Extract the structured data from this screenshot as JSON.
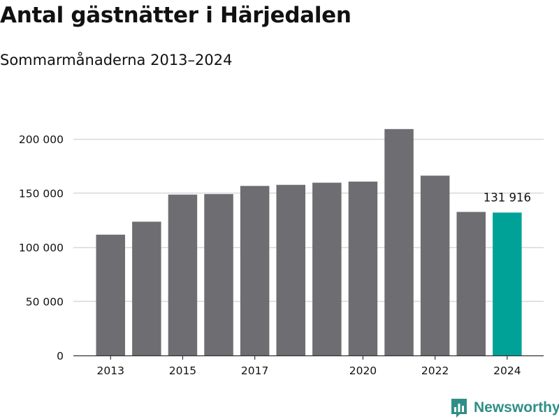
{
  "header": {
    "title": "Antal gästnätter i Härjedalen",
    "subtitle": "Sommarmånaderna 2013–2024"
  },
  "brand": {
    "name": "Newsworthy",
    "icon": "newsworthy-logo-icon"
  },
  "colors": {
    "bar": "#6e6d72",
    "highlight": "#00a298",
    "grid": "#d8d8d8",
    "axis": "#333333",
    "text": "#111111",
    "brand": "#2f8f86"
  },
  "chart_data": {
    "type": "bar",
    "title": "Antal gästnätter i Härjedalen",
    "subtitle": "Sommarmånaderna 2013–2024",
    "xlabel": "",
    "ylabel": "",
    "categories": [
      "2013",
      "2014",
      "2015",
      "2016",
      "2017",
      "2018",
      "2019",
      "2020",
      "2021",
      "2022",
      "2023",
      "2024"
    ],
    "values": [
      111500,
      123500,
      148500,
      149000,
      156500,
      157500,
      159500,
      160500,
      209000,
      166000,
      132500,
      131916
    ],
    "x_tick_labels": [
      "2013",
      "2015",
      "2017",
      "2020",
      "2022",
      "2024"
    ],
    "y_ticks": [
      0,
      50000,
      100000,
      150000,
      200000
    ],
    "y_tick_labels": [
      "0",
      "50 000",
      "100 000",
      "150 000",
      "200 000"
    ],
    "ylim": [
      0,
      225000
    ],
    "grid": "horizontal",
    "highlight_category": "2024",
    "annotations": [
      {
        "category": "2024",
        "text": "131 916"
      }
    ]
  }
}
